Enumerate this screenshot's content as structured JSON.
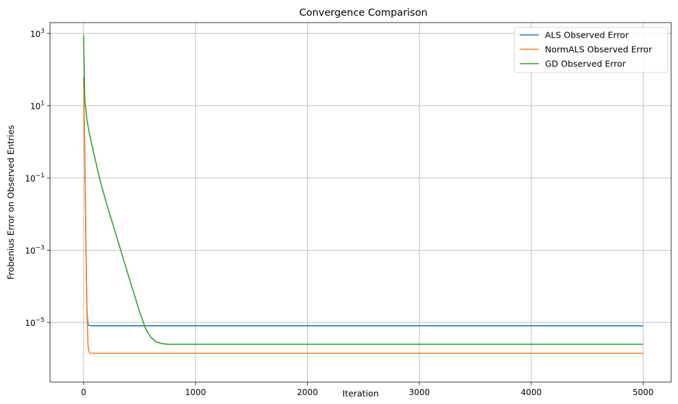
{
  "chart_data": {
    "type": "line",
    "title": "Convergence Comparison",
    "xlabel": "Iteration",
    "ylabel": "Frobenius Error on Observed Entries",
    "xlim": [
      -300,
      5250
    ],
    "ylim_log10": [
      -6.65,
      3.3
    ],
    "y_scale": "log",
    "grid": true,
    "legend_position": "top-right",
    "x_ticks": [
      {
        "value": 0,
        "label": "0"
      },
      {
        "value": 1000,
        "label": "1000"
      },
      {
        "value": 2000,
        "label": "2000"
      },
      {
        "value": 3000,
        "label": "3000"
      },
      {
        "value": 4000,
        "label": "4000"
      },
      {
        "value": 5000,
        "label": "5000"
      }
    ],
    "y_ticks": [
      {
        "exp": 3,
        "base": "10",
        "sup": "3"
      },
      {
        "exp": 1,
        "base": "10",
        "sup": "1"
      },
      {
        "exp": -1,
        "base": "10",
        "sup": "−1"
      },
      {
        "exp": -3,
        "base": "10",
        "sup": "−3"
      },
      {
        "exp": -5,
        "base": "10",
        "sup": "−5"
      }
    ],
    "series": [
      {
        "name": "ALS Observed Error",
        "color": "#1f77b4",
        "x": [
          0,
          10,
          20,
          30,
          40,
          60,
          100,
          500,
          1000,
          2000,
          3000,
          4000,
          5000
        ],
        "y": [
          60,
          0.5,
          0.002,
          2e-05,
          8.5e-06,
          8.1e-06,
          8.1e-06,
          8.1e-06,
          8.1e-06,
          8.1e-06,
          8.1e-06,
          8.1e-06,
          8.1e-06
        ]
      },
      {
        "name": "NormALS Observed Error",
        "color": "#ff7f0e",
        "x": [
          0,
          10,
          20,
          30,
          40,
          50,
          60,
          100,
          500,
          1000,
          2000,
          3000,
          4000,
          5000
        ],
        "y": [
          60,
          0.5,
          0.002,
          2e-05,
          2.2e-06,
          1.5e-06,
          1.4e-06,
          1.4e-06,
          1.4e-06,
          1.4e-06,
          1.4e-06,
          1.4e-06,
          1.4e-06,
          1.4e-06
        ]
      },
      {
        "name": "GD Observed Error",
        "color": "#2ca02c",
        "x": [
          0,
          10,
          20,
          30,
          50,
          75,
          100,
          150,
          200,
          250,
          300,
          350,
          400,
          450,
          500,
          550,
          600,
          650,
          700,
          750,
          800,
          850,
          900,
          1000,
          1500,
          2000,
          3000,
          4000,
          5000
        ],
        "y": [
          900,
          15,
          8,
          4,
          1.8,
          0.8,
          0.36,
          0.08,
          0.022,
          0.0068,
          0.0021,
          0.00065,
          0.0002,
          6.3e-05,
          2e-05,
          7.2e-06,
          3.9e-06,
          2.9e-06,
          2.6e-06,
          2.5e-06,
          2.5e-06,
          2.5e-06,
          2.5e-06,
          2.5e-06,
          2.5e-06,
          2.5e-06,
          2.5e-06,
          2.5e-06,
          2.5e-06
        ]
      }
    ]
  }
}
